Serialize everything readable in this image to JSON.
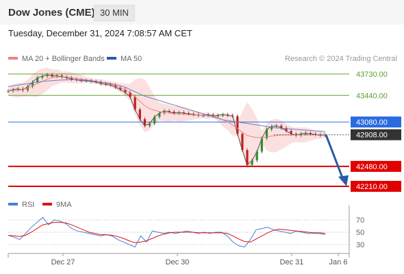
{
  "header": {
    "title": "Dow Jones (CME)",
    "timeframe": "30 MIN",
    "timestamp": "Tuesday, December 31, 2024 7:08:57 AM CET"
  },
  "legend": {
    "ma20": {
      "label": "MA 20 + Bollinger Bands",
      "color": "#f08080"
    },
    "ma50": {
      "label": "MA 50",
      "color": "#2a5aa8"
    },
    "rsi": {
      "label": "RSI",
      "color": "#4a7fd6"
    },
    "ma9": {
      "label": "9MA",
      "color": "#e01010"
    }
  },
  "credit": "Research © 2024 Trading Central",
  "chart_data": {
    "type": "line",
    "title": "Dow Jones (CME)",
    "timeframe": "30 MIN",
    "x_ticks": [
      "Dec 27",
      "Dec 30",
      "Dec 31",
      "Jan 6"
    ],
    "ylim": [
      42100,
      43900
    ],
    "current_price": {
      "value": 42908.0,
      "label": "42908.00"
    },
    "levels": [
      {
        "value": 43730.0,
        "label": "43730.00",
        "kind": "resistance",
        "color": "#5aa02c"
      },
      {
        "value": 43440.0,
        "label": "43440.00",
        "kind": "resistance",
        "color": "#5aa02c"
      },
      {
        "value": 43080.0,
        "label": "43080.00",
        "kind": "pivot",
        "color": "#2a6be0"
      },
      {
        "value": 42480.0,
        "label": "42480.00",
        "kind": "support",
        "color": "#e00000"
      },
      {
        "value": 42210.0,
        "label": "42210.00",
        "kind": "support",
        "color": "#e00000"
      }
    ],
    "forecast_arrow": {
      "from": 42908,
      "to": 42230
    },
    "series": [
      {
        "name": "Price",
        "values": [
          43500,
          43520,
          43530,
          43510,
          43560,
          43620,
          43680,
          43700,
          43720,
          43700,
          43710,
          43690,
          43680,
          43660,
          43650,
          43640,
          43640,
          43630,
          43620,
          43600,
          43590,
          43580,
          43550,
          43520,
          43480,
          43420,
          43250,
          43120,
          43030,
          43060,
          43150,
          43200,
          43230,
          43220,
          43200,
          43210,
          43200,
          43190,
          43180,
          43170,
          43170,
          43180,
          43160,
          43170,
          43180,
          43170,
          43160,
          42920,
          42700,
          42500,
          42560,
          42680,
          42860,
          42980,
          43020,
          43030,
          43000,
          42960,
          42920,
          42900,
          42920,
          42930,
          42920,
          42910,
          42900,
          42908
        ]
      },
      {
        "name": "MA 20",
        "values": [
          43500,
          43505,
          43510,
          43520,
          43540,
          43570,
          43600,
          43630,
          43660,
          43680,
          43690,
          43690,
          43690,
          43680,
          43670,
          43660,
          43650,
          43640,
          43630,
          43620,
          43605,
          43590,
          43570,
          43545,
          43515,
          43480,
          43420,
          43360,
          43300,
          43260,
          43240,
          43220,
          43210,
          43200,
          43195,
          43190,
          43185,
          43180,
          43175,
          43170,
          43170,
          43165,
          43160,
          43140,
          43110,
          43080,
          43040,
          42990,
          42940,
          42900,
          42880,
          42870,
          42870,
          42880,
          42890,
          42900,
          42905,
          42905,
          42905,
          42905,
          42906,
          42907,
          42907,
          42908,
          42908,
          42908
        ]
      },
      {
        "name": "MA 50",
        "values": [
          43560,
          43570,
          43580,
          43590,
          43600,
          43610,
          43620,
          43630,
          43635,
          43640,
          43645,
          43648,
          43650,
          43652,
          43652,
          43650,
          43646,
          43640,
          43630,
          43620,
          43610,
          43600,
          43585,
          43570,
          43550,
          43520,
          43490,
          43460,
          43430,
          43410,
          43390,
          43370,
          43350,
          43330,
          43310,
          43290,
          43270,
          43250,
          43230,
          43210,
          43190,
          43170,
          43150,
          43130,
          43110,
          43100,
          43090,
          43080,
          43070,
          43060,
          43050,
          43040,
          43030,
          43020,
          43010,
          43000,
          42995,
          42990,
          42985,
          42980,
          42975,
          42970,
          42965,
          42960,
          42955,
          42950
        ]
      },
      {
        "name": "RSI",
        "values": [
          45,
          42,
          38,
          48,
          58,
          66,
          74,
          62,
          70,
          68,
          64,
          56,
          52,
          50,
          48,
          46,
          44,
          46,
          44,
          38,
          34,
          30,
          26,
          44,
          34,
          52,
          50,
          48,
          50,
          48,
          50,
          52,
          50,
          48,
          50,
          48,
          50,
          50,
          44,
          34,
          28,
          26,
          38,
          54,
          56,
          58,
          54,
          52,
          50,
          48,
          52,
          50,
          48,
          48,
          48,
          46
        ]
      },
      {
        "name": "9MA",
        "values": [
          45,
          44,
          43,
          45,
          50,
          56,
          62,
          64,
          66,
          66,
          65,
          62,
          58,
          54,
          50,
          48,
          46,
          46,
          45,
          43,
          40,
          36,
          33,
          34,
          36,
          40,
          44,
          47,
          49,
          50,
          50,
          50,
          50,
          49,
          49,
          49,
          49,
          49,
          48,
          44,
          39,
          35,
          34,
          39,
          44,
          49,
          53,
          55,
          54,
          53,
          52,
          51,
          50,
          49,
          49,
          48
        ]
      }
    ],
    "rsi_levels": [
      70,
      50,
      30
    ]
  }
}
